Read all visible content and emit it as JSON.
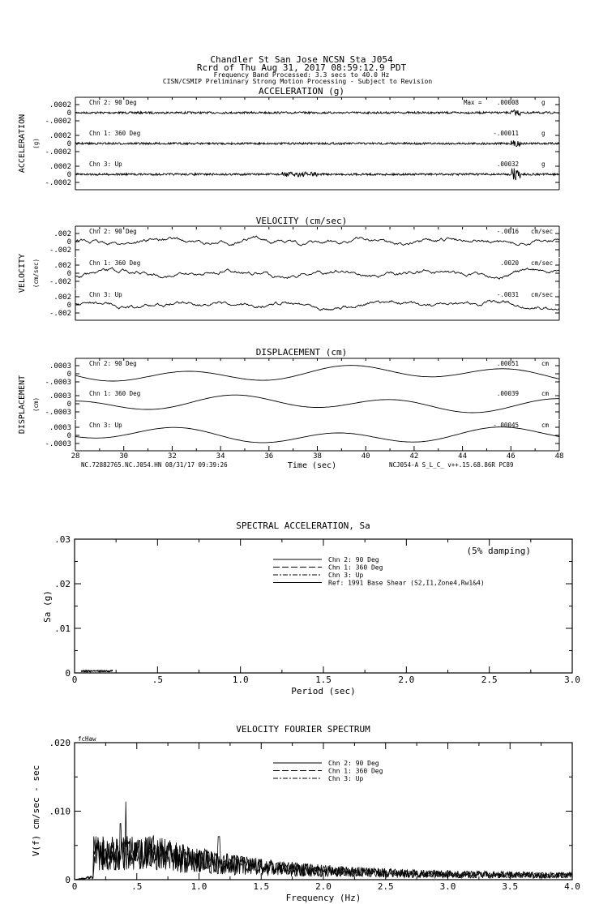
{
  "header": {
    "line1": "Chandler St San Jose    NCSN Sta J054",
    "line2": "Rcrd of Thu Aug 31, 2017 08:59:12.9 PDT",
    "line3": "Frequency Band Processed: 3.3 secs to 40.0 Hz",
    "line4": "CISN/CSMIP Preliminary Strong Motion Processing - Subject to Revision"
  },
  "chart_data": [
    {
      "type": "line",
      "title": "ACCELERATION (g)",
      "ylabel": "ACCELERATION",
      "unit_label": "(g)",
      "max_label": "Max =",
      "ytick_labels": [
        ".0002",
        "0",
        "-.0002"
      ],
      "ylim": [
        -0.0002,
        0.0002
      ],
      "xlim": [
        28,
        48
      ],
      "channels": [
        {
          "label": "Chn 2: 90 Deg",
          "peak": ".00008",
          "unit": "g"
        },
        {
          "label": "Chn 1: 360 Deg",
          "peak": "-.00011",
          "unit": "g"
        },
        {
          "label": "Chn 3: Up",
          "peak": ".00032",
          "unit": "g"
        }
      ]
    },
    {
      "type": "line",
      "title": "VELOCITY (cm/sec)",
      "ylabel": "VELOCITY",
      "unit_label": "(cm/sec)",
      "ytick_labels": [
        ".002",
        "0",
        "-.002"
      ],
      "ylim": [
        -0.002,
        0.002
      ],
      "xlim": [
        28,
        48
      ],
      "channels": [
        {
          "label": "Chn 2: 90 Deg",
          "peak": "-.0016",
          "unit": "cm/sec"
        },
        {
          "label": "Chn 1: 360 Deg",
          "peak": ".0020",
          "unit": "cm/sec"
        },
        {
          "label": "Chn 3: Up",
          "peak": "-.0031",
          "unit": "cm/sec"
        }
      ]
    },
    {
      "type": "line",
      "title": "DISPLACEMENT (cm)",
      "ylabel": "DISPLACEMENT",
      "unit_label": "(cm)",
      "ytick_labels": [
        ".0003",
        "0",
        "-.0003"
      ],
      "ylim": [
        -0.0003,
        0.0003
      ],
      "xlim": [
        28,
        48
      ],
      "xticks": [
        "28",
        "30",
        "32",
        "34",
        "36",
        "38",
        "40",
        "42",
        "44",
        "46",
        "48"
      ],
      "xlabel": "Time (sec)",
      "footer_left": "NC.72882765.NC.J054.HN 08/31/17 09:39:26",
      "footer_right": "NCJ054-A  S_L_C_  v++.15.68.86R PC89",
      "channels": [
        {
          "label": "Chn 2: 90 Deg",
          "peak": ".00051",
          "unit": "cm"
        },
        {
          "label": "Chn 1: 360 Deg",
          "peak": ".00039",
          "unit": "cm"
        },
        {
          "label": "Chn 3: Up",
          "peak": "-.00045",
          "unit": "cm"
        }
      ]
    },
    {
      "type": "line",
      "title": "SPECTRAL ACCELERATION, Sa",
      "xlabel": "Period (sec)",
      "ylabel": "Sa (g)",
      "note": "(5% damping)",
      "xlim": [
        0,
        3.0
      ],
      "ylim": [
        0,
        0.03
      ],
      "xticks": [
        "0",
        ".5",
        "1.0",
        "1.5",
        "2.0",
        "2.5",
        "3.0"
      ],
      "yticks": [
        ".03",
        ".02",
        ".01",
        "0"
      ],
      "legend": [
        "Chn 2: 90 Deg",
        "Chn 1: 360 Deg",
        "Chn 3: Up",
        "Ref: 1991 Base Shear (S2,I1,Zone4,Rw1&4)"
      ],
      "max_value_approx": 0.0005
    },
    {
      "type": "line",
      "title": "VELOCITY FOURIER SPECTRUM",
      "xlabel": "Frequency (Hz)",
      "ylabel": "V(f)  cm/sec - sec",
      "corner_label": "fcHaw",
      "xlim": [
        0,
        4.0
      ],
      "ylim": [
        0,
        0.02
      ],
      "xticks": [
        "0",
        ".5",
        "1.0",
        "1.5",
        "2.0",
        "2.5",
        "3.0",
        "3.5",
        "4.0"
      ],
      "yticks": [
        ".020",
        ".010",
        "0"
      ],
      "legend": [
        "Chn 2: 90 Deg",
        "Chn 1: 360 Deg",
        "Chn 3: Up"
      ],
      "peak": {
        "x": 0.41,
        "y": 0.0114
      }
    }
  ]
}
